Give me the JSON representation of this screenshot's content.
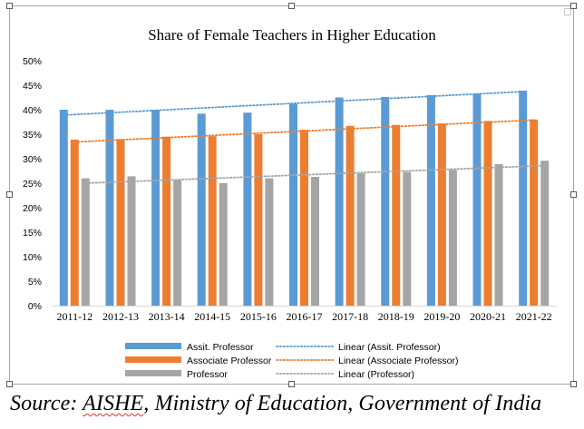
{
  "colors": {
    "assit": "#5b9bd5",
    "associate": "#ed7d31",
    "professor": "#a5a5a5"
  },
  "chart_data": {
    "type": "bar",
    "title": "Share of Female Teachers in Higher Education",
    "categories": [
      "2011-12",
      "2012-13",
      "2013-14",
      "2014-15",
      "2015-16",
      "2016-17",
      "2017-18",
      "2018-19",
      "2019-20",
      "2020-21",
      "2021-22"
    ],
    "series": [
      {
        "name": "Assit. Professor",
        "values": [
          40.0,
          40.0,
          40.0,
          39.2,
          39.4,
          41.2,
          42.5,
          42.6,
          43.0,
          43.3,
          43.9
        ]
      },
      {
        "name": "Associate Professor",
        "values": [
          33.9,
          34.0,
          34.5,
          34.6,
          35.0,
          35.9,
          36.7,
          36.9,
          37.2,
          37.7,
          38.0
        ]
      },
      {
        "name": "Professor",
        "values": [
          26.0,
          26.4,
          25.6,
          25.0,
          26.0,
          26.3,
          27.0,
          27.3,
          27.7,
          28.9,
          29.6
        ]
      }
    ],
    "trendlines": [
      {
        "name": "Linear (Assit. Professor)",
        "series": "Assit. Professor",
        "start": 38.9,
        "end": 43.7
      },
      {
        "name": "Linear (Associate Professor)",
        "series": "Associate Professor",
        "start": 33.4,
        "end": 37.9
      },
      {
        "name": "Linear (Professor)",
        "series": "Professor",
        "start": 25.0,
        "end": 28.6
      }
    ],
    "yticks": [
      "0%",
      "5%",
      "10%",
      "15%",
      "20%",
      "25%",
      "30%",
      "35%",
      "40%",
      "45%",
      "50%"
    ],
    "ylim": [
      0,
      50
    ],
    "grid": false,
    "legend_position": "bottom"
  },
  "source": {
    "prefix": "Source: ",
    "org": "AISHE",
    "suffix": ", Ministry of Education, Government of India"
  }
}
